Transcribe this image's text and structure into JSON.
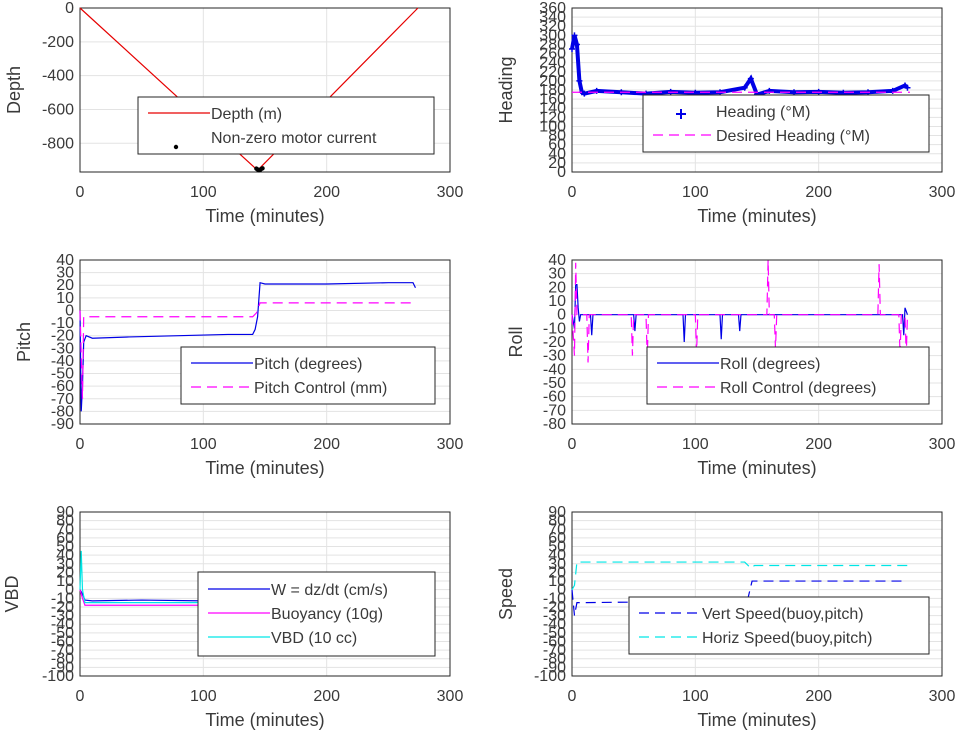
{
  "chart_data": [
    {
      "type": "line",
      "ylabel": "Depth",
      "xlabel": "Time (minutes)",
      "xlim": [
        0,
        300
      ],
      "ylim": [
        -970,
        0
      ],
      "xticks": [
        "0",
        "100",
        "200",
        "300"
      ],
      "yticks": [
        "0",
        "-200",
        "-400",
        "-600",
        "-800"
      ],
      "series": [
        {
          "name": "Depth (m)",
          "color": "#e60000",
          "style": "solid",
          "x": [
            0,
            144,
            274
          ],
          "y": [
            0,
            -960,
            0
          ]
        },
        {
          "name": "Non-zero motor current",
          "color": "#000000",
          "style": "dot",
          "x": [
            143,
            144,
            145,
            146,
            147,
            148
          ],
          "y": [
            -950,
            -955,
            -960,
            -958,
            -952,
            -948
          ]
        }
      ],
      "legend": "lower-right"
    },
    {
      "type": "line",
      "ylabel": "Heading",
      "xlabel": "Time (minutes)",
      "xlim": [
        0,
        300
      ],
      "ylim": [
        0,
        360
      ],
      "xticks": [
        "0",
        "100",
        "200",
        "300"
      ],
      "yticks": [
        "0",
        "20",
        "40",
        "60",
        "80",
        "100",
        "120",
        "140",
        "160",
        "180",
        "200",
        "220",
        "240",
        "260",
        "280",
        "300",
        "320",
        "340",
        "360"
      ],
      "series": [
        {
          "name": "Heading (°M)",
          "color": "#0000e6",
          "style": "plus",
          "x": [
            0,
            2,
            4,
            6,
            8,
            10,
            20,
            40,
            60,
            80,
            100,
            120,
            140,
            145,
            150,
            160,
            180,
            200,
            220,
            240,
            260,
            270,
            272
          ],
          "y": [
            270,
            300,
            280,
            200,
            175,
            172,
            178,
            175,
            172,
            176,
            174,
            175,
            185,
            205,
            170,
            178,
            175,
            176,
            174,
            175,
            178,
            190,
            185
          ]
        },
        {
          "name": "Desired Heading (°M)",
          "color": "#ff00ff",
          "style": "dash",
          "x": [
            0,
            274
          ],
          "y": [
            175,
            175
          ]
        }
      ],
      "legend": "lower-right"
    },
    {
      "type": "line",
      "ylabel": "Pitch",
      "xlabel": "Time (minutes)",
      "xlim": [
        0,
        300
      ],
      "ylim": [
        -90,
        40
      ],
      "xticks": [
        "0",
        "100",
        "200",
        "300"
      ],
      "yticks": [
        "40",
        "30",
        "20",
        "10",
        "0",
        "-10",
        "-20",
        "-30",
        "-40",
        "-50",
        "-60",
        "-70",
        "-80",
        "-90"
      ],
      "series": [
        {
          "name": "Pitch (degrees)",
          "color": "#0000e6",
          "style": "solid",
          "x": [
            0,
            1,
            2,
            3,
            5,
            10,
            40,
            80,
            120,
            140,
            142,
            144,
            146,
            150,
            200,
            250,
            270,
            272
          ],
          "y": [
            0,
            -80,
            -60,
            -25,
            -20,
            -22,
            -21,
            -20,
            -19,
            -19,
            -15,
            -5,
            22,
            21,
            21,
            22,
            22,
            18
          ]
        },
        {
          "name": "Pitch Control (mm)",
          "color": "#ff00ff",
          "style": "dash",
          "x": [
            0,
            2,
            3,
            5,
            140,
            143,
            146,
            200,
            272
          ],
          "y": [
            0,
            -70,
            -5,
            -5,
            -5,
            -2,
            6,
            6,
            6
          ]
        }
      ],
      "legend": "lower-right"
    },
    {
      "type": "line",
      "ylabel": "Roll",
      "xlabel": "Time (minutes)",
      "xlim": [
        0,
        300
      ],
      "ylim": [
        -80,
        40
      ],
      "xticks": [
        "0",
        "100",
        "200",
        "300"
      ],
      "yticks": [
        "40",
        "30",
        "20",
        "10",
        "0",
        "-10",
        "-20",
        "-30",
        "-40",
        "-50",
        "-60",
        "-70",
        "-80"
      ],
      "series": [
        {
          "name": "Roll (degrees)",
          "color": "#0000e6",
          "style": "solid",
          "x": [
            0,
            2,
            3,
            4,
            5,
            6,
            7,
            8,
            10,
            15,
            16,
            17,
            50,
            51,
            52,
            90,
            91,
            92,
            120,
            121,
            122,
            135,
            136,
            137,
            160,
            200,
            250,
            268,
            269,
            270,
            272
          ],
          "y": [
            0,
            -10,
            22,
            22,
            5,
            -5,
            0,
            0,
            0,
            0,
            -15,
            0,
            0,
            -12,
            0,
            0,
            -20,
            0,
            0,
            -18,
            0,
            0,
            -12,
            0,
            0,
            0,
            0,
            0,
            -15,
            5,
            0
          ]
        },
        {
          "name": "Roll Control (degrees)",
          "color": "#ff00ff",
          "style": "dash",
          "x": [
            0,
            2,
            3,
            4,
            5,
            6,
            12,
            13,
            14,
            48,
            49,
            50,
            60,
            61,
            62,
            100,
            101,
            102,
            158,
            159,
            160,
            164,
            165,
            166,
            248,
            249,
            250,
            265,
            266,
            267,
            270,
            271,
            272
          ],
          "y": [
            0,
            -30,
            38,
            0,
            0,
            0,
            0,
            -35,
            0,
            0,
            -30,
            0,
            0,
            -32,
            0,
            0,
            -28,
            0,
            0,
            40,
            0,
            0,
            -25,
            0,
            0,
            37,
            0,
            0,
            -30,
            0,
            0,
            -30,
            0
          ]
        }
      ],
      "legend": "lower-right"
    },
    {
      "type": "line",
      "ylabel": "VBD",
      "xlabel": "Time (minutes)",
      "xlim": [
        0,
        300
      ],
      "ylim": [
        -100,
        90
      ],
      "xticks": [
        "0",
        "100",
        "200",
        "300"
      ],
      "yticks": [
        "90",
        "80",
        "70",
        "60",
        "50",
        "40",
        "30",
        "20",
        "10",
        "0",
        "-10",
        "-20",
        "-30",
        "-40",
        "-50",
        "-60",
        "-70",
        "-80",
        "-90",
        "-100"
      ],
      "series": [
        {
          "name": "W = dz/dt (cm/s)",
          "color": "#0000e6",
          "style": "solid",
          "x": [
            0,
            2,
            4,
            10,
            50,
            100,
            140,
            145,
            150,
            200,
            250,
            272
          ],
          "y": [
            0,
            -5,
            -12,
            -13,
            -12,
            -13,
            -13,
            -5,
            12,
            12,
            12,
            12
          ]
        },
        {
          "name": "Buoyancy (10g)",
          "color": "#ff00ff",
          "style": "solid",
          "x": [
            0,
            2,
            4,
            10,
            140,
            145,
            150,
            272
          ],
          "y": [
            0,
            -10,
            -18,
            -18,
            -18,
            -5,
            15,
            15
          ]
        },
        {
          "name": "VBD (10 cc)",
          "color": "#00e6e6",
          "style": "solid",
          "x": [
            0,
            1,
            2,
            4,
            140,
            145,
            148,
            272
          ],
          "y": [
            0,
            45,
            0,
            -15,
            -15,
            0,
            18,
            18
          ]
        }
      ],
      "legend": "lower-right"
    },
    {
      "type": "line",
      "ylabel": "Speed",
      "xlabel": "Time (minutes)",
      "xlim": [
        0,
        300
      ],
      "ylim": [
        -100,
        90
      ],
      "xticks": [
        "0",
        "100",
        "200",
        "300"
      ],
      "yticks": [
        "90",
        "80",
        "70",
        "60",
        "50",
        "40",
        "30",
        "20",
        "10",
        "0",
        "-10",
        "-20",
        "-30",
        "-40",
        "-50",
        "-60",
        "-70",
        "-80",
        "-90",
        "-100"
      ],
      "series": [
        {
          "name": "Vert Speed(buoy,pitch)",
          "color": "#0000e6",
          "style": "dash",
          "x": [
            0,
            2,
            4,
            10,
            140,
            143,
            146,
            150,
            272
          ],
          "y": [
            0,
            -30,
            -15,
            -15,
            -13,
            -8,
            10,
            10,
            10
          ]
        },
        {
          "name": "Horiz Speed(buoy,pitch)",
          "color": "#00e6e6",
          "style": "dash",
          "x": [
            0,
            2,
            4,
            140,
            145,
            148,
            272
          ],
          "y": [
            0,
            5,
            32,
            32,
            25,
            28,
            28
          ]
        }
      ],
      "legend": "lower-right"
    }
  ]
}
